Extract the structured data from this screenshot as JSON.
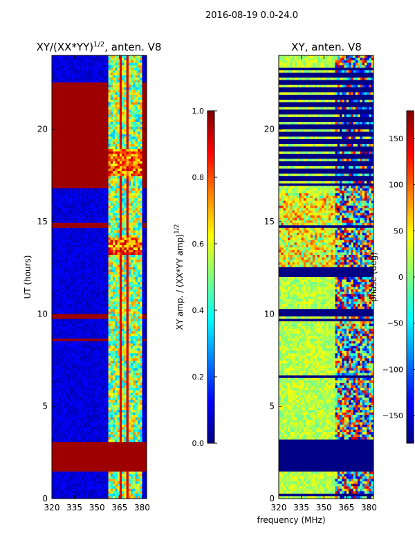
{
  "figure": {
    "suptitle": "2016-08-19 0.0-24.0",
    "xlabel": "frequency (MHz)"
  },
  "chart_data": [
    {
      "type": "heatmap",
      "title": "XY/(XX*YY)",
      "title_exp": "1/2",
      "title_suffix": ", anten. V8",
      "ylabel": "UT (hours)",
      "xlim": [
        320,
        383
      ],
      "ylim": [
        0,
        24
      ],
      "xticks": [
        "320",
        "335",
        "350",
        "365",
        "380"
      ],
      "xtick_values": [
        320,
        335,
        350,
        365,
        380
      ],
      "yticks": [
        "0",
        "5",
        "10",
        "15",
        "20"
      ],
      "ytick_values": [
        0,
        5,
        10,
        15,
        20
      ],
      "colorbar": {
        "label": "XY amp. / (XX*YY amp)",
        "label_exp": "1/2",
        "range": [
          0.0,
          1.0
        ],
        "ticks": [
          "0.0",
          "0.2",
          "0.4",
          "0.6",
          "0.8",
          "1.0"
        ],
        "tick_values": [
          0.0,
          0.2,
          0.4,
          0.6,
          0.8,
          1.0
        ],
        "colormap": "jet"
      },
      "saturated_bands_hours": [
        [
          1.4,
          3.1
        ],
        [
          16.8,
          22.5
        ],
        [
          14.7,
          14.9
        ],
        [
          9.8,
          10.0
        ],
        [
          8.5,
          8.6
        ]
      ],
      "active_channel_band_mhz": [
        358,
        380
      ],
      "background_value": 0.05
    },
    {
      "type": "heatmap",
      "title": "XY, anten. V8",
      "xlim": [
        320,
        383
      ],
      "ylim": [
        0,
        24
      ],
      "xticks": [
        "320",
        "335",
        "350",
        "365",
        "380"
      ],
      "xtick_values": [
        320,
        335,
        350,
        365,
        380
      ],
      "yticks": [
        "0",
        "5",
        "10",
        "15",
        "20"
      ],
      "ytick_values": [
        0,
        5,
        10,
        15,
        20
      ],
      "colorbar": {
        "label": "phase (deg)",
        "range": [
          -180,
          180
        ],
        "ticks": [
          "−150",
          "−100",
          "−50",
          "0",
          "50",
          "100",
          "150"
        ],
        "tick_values": [
          -150,
          -100,
          -50,
          0,
          50,
          100,
          150
        ],
        "colormap": "jet"
      },
      "flagged_bands_hours": [
        [
          1.4,
          3.2
        ],
        [
          17.0,
          23.0
        ],
        [
          10.0,
          10.3
        ],
        [
          12.0,
          12.5
        ]
      ],
      "dominant_phase_deg": 20
    }
  ]
}
